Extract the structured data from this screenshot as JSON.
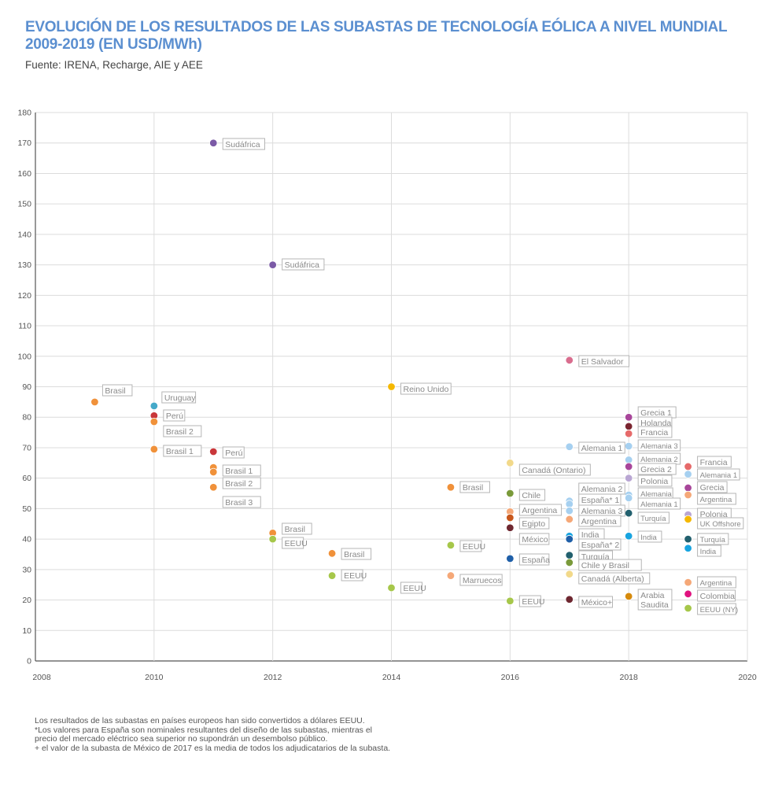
{
  "header": {
    "title_line1": "EVOLUCIÓN DE LOS RESULTADOS DE LAS SUBASTAS DE TECNOLOGÍA EÓLICA A NIVEL MUNDIAL",
    "title_line2": "2009-2019 (EN USD/MWh)",
    "source": "Fuente: IRENA, Recharge, AIE y AEE"
  },
  "notes": [
    "Los resultados de las subastas en países europeos han sido convertidos a dólares EEUU.",
    "*Los valores para España son nominales resultantes del diseño de las subastas, mientras el",
    "precio del mercado eléctrico sea superior no supondrán un desembolso público.",
    "+ el valor de la subasta de México de 2017 es la media de todos los adjudicatarios de la subasta."
  ],
  "chart_data": {
    "type": "scatter",
    "title": "Evolución de los resultados de las subastas de tecnología eólica a nivel mundial 2009-2019",
    "xlabel": "",
    "ylabel": "USD/MWh",
    "xlim": [
      2008,
      2020
    ],
    "ylim": [
      0,
      180
    ],
    "x_ticks": [
      "2008",
      "2010",
      "2012",
      "2014",
      "2016",
      "2018",
      "2020"
    ],
    "y_ticks": [
      "0",
      "10",
      "20",
      "30",
      "40",
      "50",
      "60",
      "70",
      "80",
      "90",
      "100",
      "110",
      "120",
      "130",
      "140",
      "150",
      "160",
      "170",
      "180"
    ],
    "grid": true,
    "points": [
      {
        "x": 2009,
        "y": 85,
        "label": "Brasil",
        "color": "#f0913a"
      },
      {
        "x": 2010,
        "y": 83.7,
        "label": "Uruguay",
        "color": "#45a9c9"
      },
      {
        "x": 2010,
        "y": 80.5,
        "label": "Perú",
        "color": "#c9373a"
      },
      {
        "x": 2010,
        "y": 78.5,
        "label": "Brasil 2",
        "color": "#f0913a"
      },
      {
        "x": 2010,
        "y": 69.5,
        "label": "Brasil 1",
        "color": "#f0913a"
      },
      {
        "x": 2011,
        "y": 68.7,
        "label": "Perú",
        "color": "#c9373a"
      },
      {
        "x": 2011,
        "y": 63.5,
        "label": "Brasil 1",
        "color": "#f0913a"
      },
      {
        "x": 2011,
        "y": 62,
        "label": "Brasil 2",
        "color": "#f0913a"
      },
      {
        "x": 2011,
        "y": 57,
        "label": "Brasil 3",
        "color": "#f0913a"
      },
      {
        "x": 2011,
        "y": 170,
        "label": "Sudáfrica",
        "color": "#7b5aa6"
      },
      {
        "x": 2012,
        "y": 130,
        "label": "Sudáfrica",
        "color": "#7b5aa6"
      },
      {
        "x": 2012,
        "y": 42,
        "label": "Brasil",
        "color": "#f0913a"
      },
      {
        "x": 2012,
        "y": 40,
        "label": "EEUU",
        "color": "#a6c74a"
      },
      {
        "x": 2013,
        "y": 35.3,
        "label": "Brasil",
        "color": "#f0913a"
      },
      {
        "x": 2013,
        "y": 28,
        "label": "EEUU",
        "color": "#a6c74a"
      },
      {
        "x": 2014,
        "y": 90,
        "label": "Reino Unido",
        "color": "#f5b800"
      },
      {
        "x": 2014,
        "y": 24,
        "label": "EEUU",
        "color": "#a6c74a"
      },
      {
        "x": 2015,
        "y": 57,
        "label": "Brasil",
        "color": "#f0913a"
      },
      {
        "x": 2015,
        "y": 38,
        "label": "EEUU",
        "color": "#a6c74a"
      },
      {
        "x": 2015,
        "y": 28,
        "label": "Marruecos",
        "color": "#f5a878"
      },
      {
        "x": 2016,
        "y": 65,
        "label": "Canadá (Ontario)",
        "color": "#f2d98a"
      },
      {
        "x": 2016,
        "y": 55,
        "label": "Chile",
        "color": "#7a9a3a"
      },
      {
        "x": 2016,
        "y": 49,
        "label": "Argentina",
        "color": "#f5a878"
      },
      {
        "x": 2016,
        "y": 47,
        "label": "Egipto",
        "color": "#c8571c"
      },
      {
        "x": 2016,
        "y": 43.7,
        "label": "México",
        "color": "#6e2730"
      },
      {
        "x": 2016,
        "y": 33.6,
        "label": "España",
        "color": "#1f5fa8"
      },
      {
        "x": 2016,
        "y": 19.7,
        "label": "EEUU",
        "color": "#a6c74a"
      },
      {
        "x": 2017,
        "y": 98.7,
        "label": "El Salvador",
        "color": "#d96d8e"
      },
      {
        "x": 2017,
        "y": 70.3,
        "label": "Alemania 1",
        "color": "#a6d0f0"
      },
      {
        "x": 2017,
        "y": 52.5,
        "label": "Alemania 2",
        "color": "#a6d0f0"
      },
      {
        "x": 2017,
        "y": 51.5,
        "label": "España* 1",
        "color": "#a6d0f0"
      },
      {
        "x": 2017,
        "y": 49.3,
        "label": "Alemania 3",
        "color": "#a6d0f0"
      },
      {
        "x": 2017,
        "y": 46.5,
        "label": "Argentina",
        "color": "#f5a878"
      },
      {
        "x": 2017,
        "y": 41,
        "label": "India",
        "color": "#18a4e0"
      },
      {
        "x": 2017,
        "y": 40,
        "label": "España* 2",
        "color": "#1f5fa8"
      },
      {
        "x": 2017,
        "y": 34.7,
        "label": "Turquía",
        "color": "#22606e"
      },
      {
        "x": 2017,
        "y": 32.3,
        "label": "Chile y Brasil",
        "color": "#7a9a3a"
      },
      {
        "x": 2017,
        "y": 28.5,
        "label": "Canadá (Alberta)",
        "color": "#f2d98a"
      },
      {
        "x": 2017,
        "y": 20.2,
        "label": "México+",
        "color": "#6e2730"
      },
      {
        "x": 2018,
        "y": 80,
        "label": "Grecia 1",
        "color": "#a8469a"
      },
      {
        "x": 2018,
        "y": 77,
        "label": "Holanda",
        "color": "#7a2530"
      },
      {
        "x": 2018,
        "y": 74.6,
        "label": "Francia",
        "color": "#e66a6a"
      },
      {
        "x": 2018,
        "y": 70.5,
        "label": "Alemania 3",
        "color": "#a6d0f0"
      },
      {
        "x": 2018,
        "y": 66,
        "label": "Alemania 2",
        "color": "#a6d0f0"
      },
      {
        "x": 2018,
        "y": 63.8,
        "label": "Grecia 2",
        "color": "#a8469a"
      },
      {
        "x": 2018,
        "y": 60,
        "label": "Polonia",
        "color": "#b9a6d3"
      },
      {
        "x": 2018,
        "y": 54.5,
        "label": "Alemania",
        "color": "#a6d0f0"
      },
      {
        "x": 2018,
        "y": 53.5,
        "label": "Alemania 1",
        "color": "#a6d0f0"
      },
      {
        "x": 2018,
        "y": 48.5,
        "label": "Turquía",
        "color": "#22606e"
      },
      {
        "x": 2018,
        "y": 41,
        "label": "India",
        "color": "#18a4e0"
      },
      {
        "x": 2018,
        "y": 21.2,
        "label": "Arabia Saudita",
        "color": "#d68a0c"
      },
      {
        "x": 2019,
        "y": 63.8,
        "label": "Francia",
        "color": "#e66a6a"
      },
      {
        "x": 2019,
        "y": 61.3,
        "label": "Alemania 1",
        "color": "#a6d0f0"
      },
      {
        "x": 2019,
        "y": 56.8,
        "label": "Grecia",
        "color": "#a8469a"
      },
      {
        "x": 2019,
        "y": 54.5,
        "label": "Argentina",
        "color": "#f5a878"
      },
      {
        "x": 2019,
        "y": 48,
        "label": "Polonia",
        "color": "#b9a6d3"
      },
      {
        "x": 2019,
        "y": 46.5,
        "label": "UK Offshore",
        "color": "#f5b800"
      },
      {
        "x": 2019,
        "y": 40,
        "label": "Turquía",
        "color": "#22606e"
      },
      {
        "x": 2019,
        "y": 37,
        "label": "India",
        "color": "#18a4e0"
      },
      {
        "x": 2019,
        "y": 25.8,
        "label": "Argentina",
        "color": "#f5a878"
      },
      {
        "x": 2019,
        "y": 22,
        "label": "Colombia",
        "color": "#e0137f"
      },
      {
        "x": 2019,
        "y": 17.3,
        "label": "EEUU (NY)",
        "color": "#a6c74a"
      }
    ]
  }
}
